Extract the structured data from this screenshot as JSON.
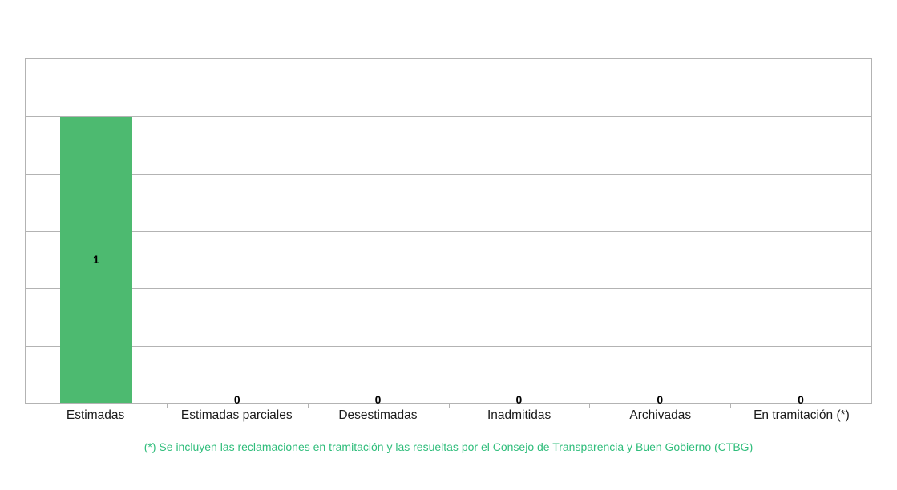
{
  "chart_data": {
    "type": "bar",
    "title": "",
    "xlabel": "",
    "ylabel": "",
    "categories": [
      "Estimadas",
      "Estimadas parciales",
      "Desestimadas",
      "Inadmitidas",
      "Archivadas",
      "En tramitación (*)"
    ],
    "values": [
      1,
      0,
      0,
      0,
      0,
      0
    ],
    "value_labels": [
      "1",
      "0",
      "0",
      "0",
      "0",
      "0"
    ],
    "ylim": [
      0,
      1.2
    ],
    "y_step": 0.2,
    "grid": true,
    "y_axis_tick_labels_visible": false,
    "legend": "none",
    "colors": {
      "bar": "#4dba70",
      "grid": "#b3b3b3",
      "category_label": "#1a1a1a",
      "value_label": "#000000"
    }
  },
  "footnote": {
    "text": "(*) Se incluyen las reclamaciones en tramitación y las resueltas por el Consejo de Transparencia y Buen Gobierno (CTBG)",
    "color": "#2fbd7b"
  }
}
